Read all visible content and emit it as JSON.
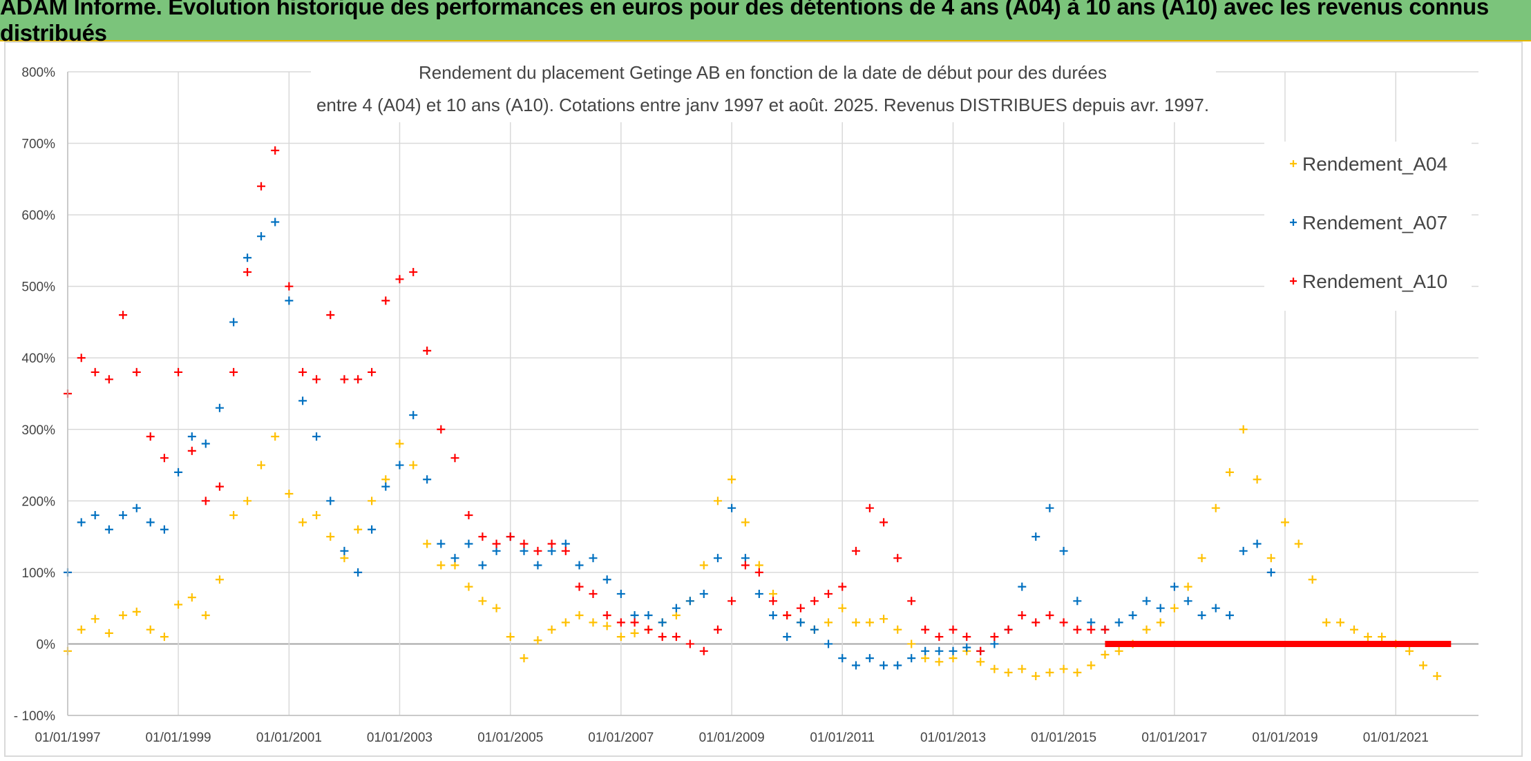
{
  "banner": {
    "title": "ADAM Informe. Evolution historique des performances en euros pour des détentions de 4 ans (A04) à 10 ans (A10) avec les revenus connus distribués"
  },
  "colors": {
    "banner_bg": "#7bc47b",
    "A04": "#ffc000",
    "A07": "#0070c0",
    "A10": "#ff0000",
    "grid": "#d9d9d9",
    "zero_line": "#a6a6a6"
  },
  "chart_data": {
    "type": "scatter",
    "title_lines": [
      "Rendement du placement Getinge AB en fonction de la date de début pour des durées",
      "entre 4 (A04) et 10 ans (A10). Cotations entre janv 1997 et août. 2025. Revenus DISTRIBUES depuis avr. 1997."
    ],
    "x_axis": {
      "type": "date",
      "range": [
        "1997-01-01",
        "2022-07-01"
      ],
      "tick_labels": [
        "01/01/1997",
        "01/01/1999",
        "01/01/2001",
        "01/01/2003",
        "01/01/2005",
        "01/01/2007",
        "01/01/2009",
        "01/01/2011",
        "01/01/2013",
        "01/01/2015",
        "01/01/2017",
        "01/01/2019",
        "01/01/2021"
      ]
    },
    "y_axis": {
      "unit": "%",
      "range": [
        -100,
        800
      ],
      "tick_labels": [
        "- 100%",
        "0%",
        "100%",
        "200%",
        "300%",
        "400%",
        "500%",
        "600%",
        "700%",
        "800%"
      ]
    },
    "grid": true,
    "legend_position": "top-right",
    "marker": "+",
    "series": [
      {
        "name": "Rendement_A04",
        "points": [
          [
            "1997-01-01",
            -10
          ],
          [
            "1997-04-01",
            20
          ],
          [
            "1997-07-01",
            35
          ],
          [
            "1997-10-01",
            15
          ],
          [
            "1998-01-01",
            40
          ],
          [
            "1998-04-01",
            45
          ],
          [
            "1998-07-01",
            20
          ],
          [
            "1998-10-01",
            10
          ],
          [
            "1999-01-01",
            55
          ],
          [
            "1999-04-01",
            65
          ],
          [
            "1999-07-01",
            40
          ],
          [
            "1999-10-01",
            90
          ],
          [
            "2000-01-01",
            180
          ],
          [
            "2000-04-01",
            200
          ],
          [
            "2000-07-01",
            250
          ],
          [
            "2000-10-01",
            290
          ],
          [
            "2001-01-01",
            210
          ],
          [
            "2001-04-01",
            170
          ],
          [
            "2001-07-01",
            180
          ],
          [
            "2001-10-01",
            150
          ],
          [
            "2002-01-01",
            120
          ],
          [
            "2002-04-01",
            160
          ],
          [
            "2002-07-01",
            200
          ],
          [
            "2002-10-01",
            230
          ],
          [
            "2003-01-01",
            280
          ],
          [
            "2003-04-01",
            250
          ],
          [
            "2003-07-01",
            140
          ],
          [
            "2003-10-01",
            110
          ],
          [
            "2004-01-01",
            110
          ],
          [
            "2004-04-01",
            80
          ],
          [
            "2004-07-01",
            60
          ],
          [
            "2004-10-01",
            50
          ],
          [
            "2005-01-01",
            10
          ],
          [
            "2005-04-01",
            -20
          ],
          [
            "2005-07-01",
            5
          ],
          [
            "2005-10-01",
            20
          ],
          [
            "2006-01-01",
            30
          ],
          [
            "2006-04-01",
            40
          ],
          [
            "2006-07-01",
            30
          ],
          [
            "2006-10-01",
            25
          ],
          [
            "2007-01-01",
            10
          ],
          [
            "2007-04-01",
            15
          ],
          [
            "2007-07-01",
            20
          ],
          [
            "2007-10-01",
            30
          ],
          [
            "2008-01-01",
            40
          ],
          [
            "2008-04-01",
            60
          ],
          [
            "2008-07-01",
            110
          ],
          [
            "2008-10-01",
            200
          ],
          [
            "2009-01-01",
            230
          ],
          [
            "2009-04-01",
            170
          ],
          [
            "2009-07-01",
            110
          ],
          [
            "2009-10-01",
            70
          ],
          [
            "2010-01-01",
            40
          ],
          [
            "2010-04-01",
            30
          ],
          [
            "2010-07-01",
            20
          ],
          [
            "2010-10-01",
            30
          ],
          [
            "2011-01-01",
            50
          ],
          [
            "2011-04-01",
            30
          ],
          [
            "2011-07-01",
            30
          ],
          [
            "2011-10-01",
            35
          ],
          [
            "2012-01-01",
            20
          ],
          [
            "2012-04-01",
            0
          ],
          [
            "2012-07-01",
            -20
          ],
          [
            "2012-10-01",
            -25
          ],
          [
            "2013-01-01",
            -20
          ],
          [
            "2013-04-01",
            -10
          ],
          [
            "2013-07-01",
            -25
          ],
          [
            "2013-10-01",
            -35
          ],
          [
            "2014-01-01",
            -40
          ],
          [
            "2014-04-01",
            -35
          ],
          [
            "2014-07-01",
            -45
          ],
          [
            "2014-10-01",
            -40
          ],
          [
            "2015-01-01",
            -35
          ],
          [
            "2015-04-01",
            -40
          ],
          [
            "2015-07-01",
            -30
          ],
          [
            "2015-10-01",
            -15
          ],
          [
            "2016-01-01",
            -10
          ],
          [
            "2016-04-01",
            0
          ],
          [
            "2016-07-01",
            20
          ],
          [
            "2016-10-01",
            30
          ],
          [
            "2017-01-01",
            50
          ],
          [
            "2017-04-01",
            80
          ],
          [
            "2017-07-01",
            120
          ],
          [
            "2017-10-01",
            190
          ],
          [
            "2018-01-01",
            240
          ],
          [
            "2018-04-01",
            300
          ],
          [
            "2018-07-01",
            230
          ],
          [
            "2018-10-01",
            120
          ],
          [
            "2019-01-01",
            170
          ],
          [
            "2019-04-01",
            140
          ],
          [
            "2019-07-01",
            90
          ],
          [
            "2019-10-01",
            30
          ],
          [
            "2020-01-01",
            30
          ],
          [
            "2020-04-01",
            20
          ],
          [
            "2020-07-01",
            10
          ],
          [
            "2020-10-01",
            10
          ],
          [
            "2021-01-01",
            0
          ],
          [
            "2021-04-01",
            -10
          ],
          [
            "2021-07-01",
            -30
          ],
          [
            "2021-10-01",
            -45
          ]
        ]
      },
      {
        "name": "Rendement_A07",
        "points": [
          [
            "1997-01-01",
            100
          ],
          [
            "1997-04-01",
            170
          ],
          [
            "1997-07-01",
            180
          ],
          [
            "1997-10-01",
            160
          ],
          [
            "1998-01-01",
            180
          ],
          [
            "1998-04-01",
            190
          ],
          [
            "1998-07-01",
            170
          ],
          [
            "1998-10-01",
            160
          ],
          [
            "1999-01-01",
            240
          ],
          [
            "1999-04-01",
            290
          ],
          [
            "1999-07-01",
            280
          ],
          [
            "1999-10-01",
            330
          ],
          [
            "2000-01-01",
            450
          ],
          [
            "2000-04-01",
            540
          ],
          [
            "2000-07-01",
            570
          ],
          [
            "2000-10-01",
            590
          ],
          [
            "2001-01-01",
            480
          ],
          [
            "2001-04-01",
            340
          ],
          [
            "2001-07-01",
            290
          ],
          [
            "2001-10-01",
            200
          ],
          [
            "2002-01-01",
            130
          ],
          [
            "2002-04-01",
            100
          ],
          [
            "2002-07-01",
            160
          ],
          [
            "2002-10-01",
            220
          ],
          [
            "2003-01-01",
            250
          ],
          [
            "2003-04-01",
            320
          ],
          [
            "2003-07-01",
            230
          ],
          [
            "2003-10-01",
            140
          ],
          [
            "2004-01-01",
            120
          ],
          [
            "2004-04-01",
            140
          ],
          [
            "2004-07-01",
            110
          ],
          [
            "2004-10-01",
            130
          ],
          [
            "2005-01-01",
            150
          ],
          [
            "2005-04-01",
            130
          ],
          [
            "2005-07-01",
            110
          ],
          [
            "2005-10-01",
            130
          ],
          [
            "2006-01-01",
            140
          ],
          [
            "2006-04-01",
            110
          ],
          [
            "2006-07-01",
            120
          ],
          [
            "2006-10-01",
            90
          ],
          [
            "2007-01-01",
            70
          ],
          [
            "2007-04-01",
            40
          ],
          [
            "2007-07-01",
            40
          ],
          [
            "2007-10-01",
            30
          ],
          [
            "2008-01-01",
            50
          ],
          [
            "2008-04-01",
            60
          ],
          [
            "2008-07-01",
            70
          ],
          [
            "2008-10-01",
            120
          ],
          [
            "2009-01-01",
            190
          ],
          [
            "2009-04-01",
            120
          ],
          [
            "2009-07-01",
            70
          ],
          [
            "2009-10-01",
            40
          ],
          [
            "2010-01-01",
            10
          ],
          [
            "2010-04-01",
            30
          ],
          [
            "2010-07-01",
            20
          ],
          [
            "2010-10-01",
            0
          ],
          [
            "2011-01-01",
            -20
          ],
          [
            "2011-04-01",
            -30
          ],
          [
            "2011-07-01",
            -20
          ],
          [
            "2011-10-01",
            -30
          ],
          [
            "2012-01-01",
            -30
          ],
          [
            "2012-04-01",
            -20
          ],
          [
            "2012-07-01",
            -10
          ],
          [
            "2012-10-01",
            -10
          ],
          [
            "2013-01-01",
            -10
          ],
          [
            "2013-04-01",
            -5
          ],
          [
            "2013-07-01",
            -10
          ],
          [
            "2013-10-01",
            0
          ],
          [
            "2014-01-01",
            20
          ],
          [
            "2014-04-01",
            80
          ],
          [
            "2014-07-01",
            150
          ],
          [
            "2014-10-01",
            190
          ],
          [
            "2015-01-01",
            130
          ],
          [
            "2015-04-01",
            60
          ],
          [
            "2015-07-01",
            30
          ],
          [
            "2015-10-01",
            20
          ],
          [
            "2016-01-01",
            30
          ],
          [
            "2016-04-01",
            40
          ],
          [
            "2016-07-01",
            60
          ],
          [
            "2016-10-01",
            50
          ],
          [
            "2017-01-01",
            80
          ],
          [
            "2017-04-01",
            60
          ],
          [
            "2017-07-01",
            40
          ],
          [
            "2017-10-01",
            50
          ],
          [
            "2018-01-01",
            40
          ],
          [
            "2018-04-01",
            130
          ],
          [
            "2018-07-01",
            140
          ],
          [
            "2018-10-01",
            100
          ]
        ]
      },
      {
        "name": "Rendement_A10",
        "points": [
          [
            "1997-01-01",
            350
          ],
          [
            "1997-04-01",
            400
          ],
          [
            "1997-07-01",
            380
          ],
          [
            "1997-10-01",
            370
          ],
          [
            "1998-01-01",
            460
          ],
          [
            "1998-04-01",
            380
          ],
          [
            "1998-07-01",
            290
          ],
          [
            "1998-10-01",
            260
          ],
          [
            "1999-01-01",
            380
          ],
          [
            "1999-04-01",
            270
          ],
          [
            "1999-07-01",
            200
          ],
          [
            "1999-10-01",
            220
          ],
          [
            "2000-01-01",
            380
          ],
          [
            "2000-04-01",
            520
          ],
          [
            "2000-07-01",
            640
          ],
          [
            "2000-10-01",
            690
          ],
          [
            "2001-01-01",
            500
          ],
          [
            "2001-04-01",
            380
          ],
          [
            "2001-07-01",
            370
          ],
          [
            "2001-10-01",
            460
          ],
          [
            "2002-01-01",
            370
          ],
          [
            "2002-04-01",
            370
          ],
          [
            "2002-07-01",
            380
          ],
          [
            "2002-10-01",
            480
          ],
          [
            "2003-01-01",
            510
          ],
          [
            "2003-04-01",
            520
          ],
          [
            "2003-07-01",
            410
          ],
          [
            "2003-10-01",
            300
          ],
          [
            "2004-01-01",
            260
          ],
          [
            "2004-04-01",
            180
          ],
          [
            "2004-07-01",
            150
          ],
          [
            "2004-10-01",
            140
          ],
          [
            "2005-01-01",
            150
          ],
          [
            "2005-04-01",
            140
          ],
          [
            "2005-07-01",
            130
          ],
          [
            "2005-10-01",
            140
          ],
          [
            "2006-01-01",
            130
          ],
          [
            "2006-04-01",
            80
          ],
          [
            "2006-07-01",
            70
          ],
          [
            "2006-10-01",
            40
          ],
          [
            "2007-01-01",
            30
          ],
          [
            "2007-04-01",
            30
          ],
          [
            "2007-07-01",
            20
          ],
          [
            "2007-10-01",
            10
          ],
          [
            "2008-01-01",
            10
          ],
          [
            "2008-04-01",
            0
          ],
          [
            "2008-07-01",
            -10
          ],
          [
            "2008-10-01",
            20
          ],
          [
            "2009-01-01",
            60
          ],
          [
            "2009-04-01",
            110
          ],
          [
            "2009-07-01",
            100
          ],
          [
            "2009-10-01",
            60
          ],
          [
            "2010-01-01",
            40
          ],
          [
            "2010-04-01",
            50
          ],
          [
            "2010-07-01",
            60
          ],
          [
            "2010-10-01",
            70
          ],
          [
            "2011-01-01",
            80
          ],
          [
            "2011-04-01",
            130
          ],
          [
            "2011-07-01",
            190
          ],
          [
            "2011-10-01",
            170
          ],
          [
            "2012-01-01",
            120
          ],
          [
            "2012-04-01",
            60
          ],
          [
            "2012-07-01",
            20
          ],
          [
            "2012-10-01",
            10
          ],
          [
            "2013-01-01",
            20
          ],
          [
            "2013-04-01",
            10
          ],
          [
            "2013-07-01",
            -10
          ],
          [
            "2013-10-01",
            10
          ],
          [
            "2014-01-01",
            20
          ],
          [
            "2014-04-01",
            40
          ],
          [
            "2014-07-01",
            30
          ],
          [
            "2014-10-01",
            40
          ],
          [
            "2015-01-01",
            30
          ],
          [
            "2015-04-01",
            20
          ],
          [
            "2015-07-01",
            20
          ],
          [
            "2015-10-01",
            20
          ]
        ],
        "flat_segment": {
          "from": "2015-10-01",
          "to": "2022-01-01",
          "value": 0
        }
      }
    ]
  }
}
